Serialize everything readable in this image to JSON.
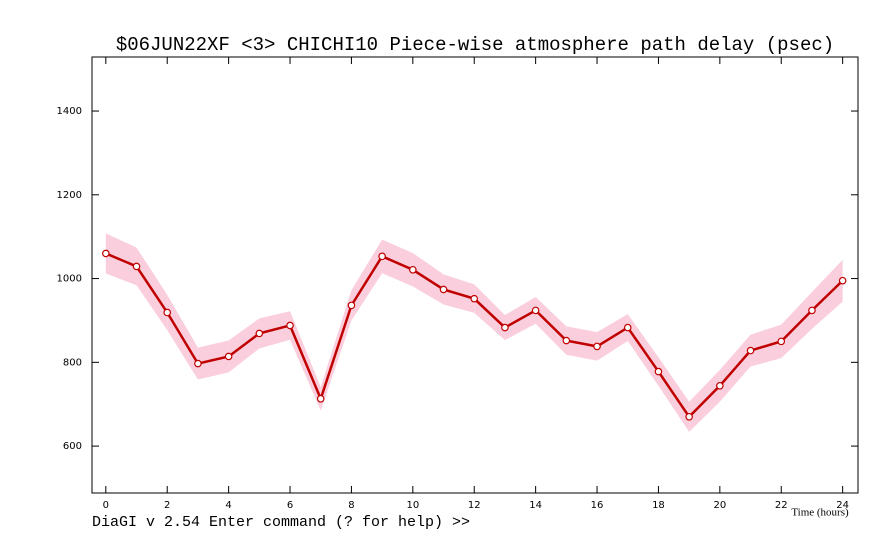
{
  "chart_data": {
    "type": "line",
    "title": "$06JUN22XF <3>  CHICHI10  Piece-wise atmosphere path delay (psec)",
    "xlabel": "Time (hours)",
    "footer": "DiaGI v 2.54  Enter command (? for help) >>",
    "x": [
      0,
      1,
      2,
      3,
      4,
      5,
      6,
      7,
      8,
      9,
      10,
      11,
      12,
      13,
      14,
      15,
      16,
      17,
      18,
      19,
      20,
      21,
      22,
      23,
      24
    ],
    "series": [
      {
        "color": "#c00000",
        "band_color": "#f9c6d6",
        "values": [
          1060,
          1029,
          919,
          797,
          814,
          869,
          888,
          713,
          936,
          1053,
          1021,
          974,
          952,
          883,
          924,
          852,
          838,
          883,
          778,
          670,
          744,
          828,
          850,
          924,
          995
        ],
        "errors": [
          48,
          45,
          42,
          38,
          38,
          36,
          34,
          28,
          36,
          40,
          40,
          36,
          34,
          30,
          32,
          34,
          34,
          32,
          34,
          36,
          38,
          38,
          40,
          44,
          50
        ]
      }
    ],
    "xlim": [
      -0.45,
      24.5
    ],
    "ylim": [
      488,
      1529
    ],
    "xticks": [
      0,
      2,
      4,
      6,
      8,
      10,
      12,
      14,
      16,
      18,
      20,
      22,
      24
    ],
    "yticks": [
      600,
      800,
      1000,
      1200,
      1400
    ]
  }
}
